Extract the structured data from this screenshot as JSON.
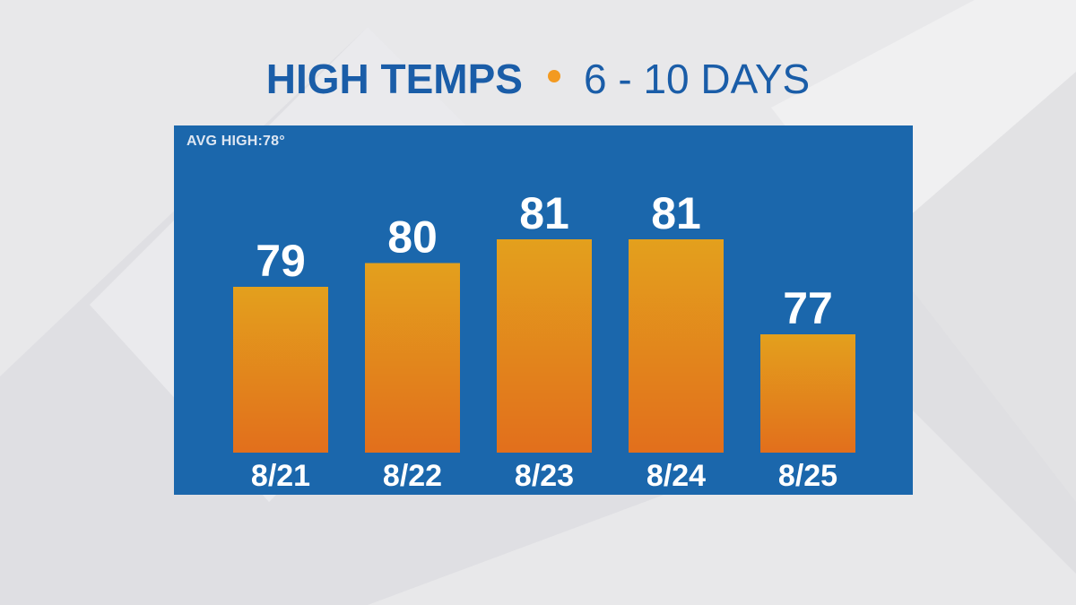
{
  "header": {
    "title": "HIGH TEMPS",
    "subtitle": "6 - 10 DAYS"
  },
  "panel": {
    "avg_label": "AVG HIGH:78°"
  },
  "colors": {
    "title": "#1a5da8",
    "dot": "#f39a21",
    "panel": "#1b67ac",
    "bar_top": "#e3a01d",
    "bar_bottom": "#e26f1c"
  },
  "chart_data": {
    "type": "bar",
    "categories": [
      "8/21",
      "8/22",
      "8/23",
      "8/24",
      "8/25"
    ],
    "values": [
      79,
      80,
      81,
      81,
      77
    ],
    "title": "HIGH TEMPS • 6 - 10 DAYS",
    "annotations": [
      "AVG HIGH:78°"
    ]
  }
}
